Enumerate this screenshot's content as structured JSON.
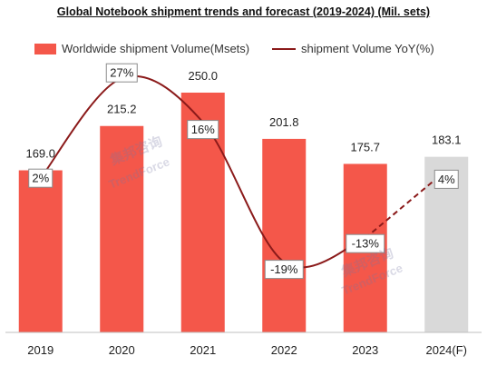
{
  "chart_data": {
    "type": "bar",
    "title": "Global Notebook shipment trends and forecast (2019-2024) (Mil. sets)",
    "categories": [
      "2019",
      "2020",
      "2021",
      "2022",
      "2023",
      "2024(F)"
    ],
    "series": [
      {
        "name": "Worldwide shipment Volume(Msets)",
        "kind": "bar",
        "values": [
          169.0,
          215.2,
          250.0,
          201.8,
          175.7,
          183.1
        ],
        "value_labels": [
          "169.0",
          "215.2",
          "250.0",
          "201.8",
          "175.7",
          "183.1"
        ],
        "forecast_index": 5
      },
      {
        "name": "shipment Volume YoY(%)",
        "kind": "line",
        "values": [
          2,
          27,
          16,
          -19,
          -13,
          4
        ],
        "value_labels": [
          "2%",
          "27%",
          "16%",
          "-19%",
          "-13%",
          "4%"
        ],
        "forecast_from_index": 4
      }
    ],
    "legend_position": "top",
    "grid": false,
    "colors": {
      "bar": "#f4574a",
      "forecast_bar": "#d9d9d9",
      "line": "#8b1a1a"
    }
  },
  "watermarks": [
    "集邦咨询",
    "TrendForce"
  ]
}
